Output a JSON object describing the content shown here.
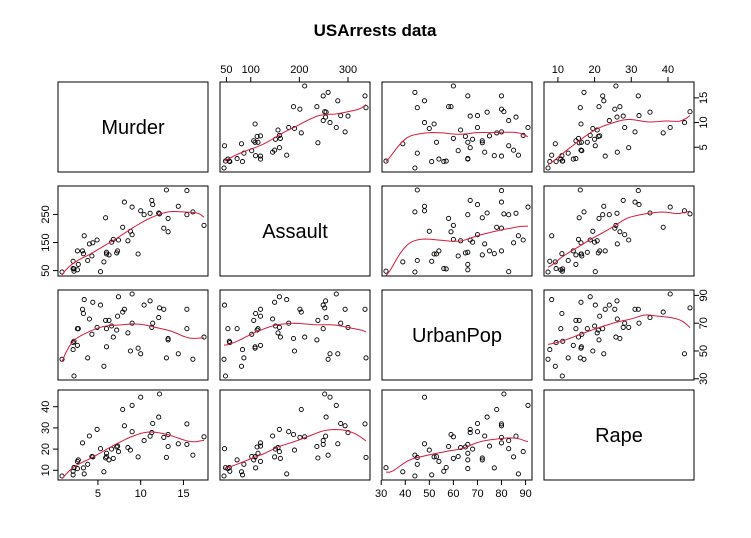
{
  "chart_data": {
    "type": "scatter",
    "title": "USArrests data",
    "variables": [
      "Murder",
      "Assault",
      "UrbanPop",
      "Rape"
    ],
    "ranges": {
      "Murder": [
        0.8,
        17.4
      ],
      "Assault": [
        45,
        337
      ],
      "UrbanPop": [
        32,
        91
      ],
      "Rape": [
        7.3,
        46.0
      ]
    },
    "ticks": {
      "Murder": [
        5,
        10,
        15
      ],
      "Assault": [
        50,
        100,
        200,
        300
      ],
      "UrbanPop": [
        30,
        40,
        50,
        60,
        70,
        80,
        90
      ],
      "Rape": [
        10,
        20,
        30,
        40
      ]
    },
    "tick_labels": {
      "Murder": [
        "5",
        "10",
        "15"
      ],
      "Assault": [
        "50",
        "100",
        "200",
        "300"
      ],
      "UrbanPop": [
        "30",
        "40",
        "50",
        "60",
        "70",
        "80",
        "90"
      ],
      "Rape": [
        "10",
        "20",
        "30",
        "40"
      ]
    },
    "tick_labels_left": {
      "Assault": [
        "50",
        "150",
        "250"
      ],
      "UrbanPop": [
        "30",
        "50",
        "70",
        "90"
      ]
    },
    "left_ticks": {
      "Assault": [
        50,
        150,
        250
      ],
      "UrbanPop": [
        30,
        50,
        70,
        90
      ]
    },
    "grid": false,
    "smoother_color": "#d81b3c",
    "points": [
      [
        13.2,
        236,
        58,
        21.2
      ],
      [
        10.0,
        263,
        48,
        44.5
      ],
      [
        8.1,
        294,
        80,
        31.0
      ],
      [
        8.8,
        190,
        50,
        19.5
      ],
      [
        9.0,
        276,
        91,
        40.6
      ],
      [
        7.9,
        204,
        78,
        38.7
      ],
      [
        3.3,
        110,
        77,
        11.1
      ],
      [
        5.9,
        238,
        72,
        15.8
      ],
      [
        15.4,
        335,
        80,
        31.9
      ],
      [
        17.4,
        211,
        60,
        25.8
      ],
      [
        5.3,
        46,
        83,
        20.2
      ],
      [
        2.6,
        120,
        54,
        14.2
      ],
      [
        10.4,
        249,
        83,
        24.0
      ],
      [
        7.2,
        113,
        65,
        21.0
      ],
      [
        2.2,
        56,
        57,
        11.3
      ],
      [
        6.0,
        115,
        66,
        18.0
      ],
      [
        9.7,
        109,
        52,
        16.3
      ],
      [
        15.4,
        249,
        66,
        22.2
      ],
      [
        2.1,
        83,
        51,
        7.8
      ],
      [
        11.3,
        300,
        67,
        27.8
      ],
      [
        4.4,
        149,
        85,
        16.3
      ],
      [
        12.1,
        255,
        74,
        35.1
      ],
      [
        2.7,
        72,
        66,
        14.9
      ],
      [
        16.1,
        259,
        44,
        17.1
      ],
      [
        9.0,
        178,
        70,
        28.2
      ],
      [
        6.0,
        109,
        53,
        16.4
      ],
      [
        4.3,
        102,
        62,
        16.5
      ],
      [
        12.2,
        252,
        81,
        46.0
      ],
      [
        2.1,
        57,
        56,
        9.5
      ],
      [
        7.4,
        159,
        89,
        18.8
      ],
      [
        11.4,
        285,
        70,
        32.1
      ],
      [
        11.1,
        254,
        86,
        26.1
      ],
      [
        13.0,
        337,
        45,
        16.1
      ],
      [
        0.8,
        45,
        44,
        7.3
      ],
      [
        7.3,
        120,
        75,
        21.4
      ],
      [
        6.6,
        151,
        68,
        20.0
      ],
      [
        4.9,
        159,
        67,
        29.3
      ],
      [
        6.3,
        106,
        72,
        14.9
      ],
      [
        3.4,
        174,
        87,
        8.3
      ],
      [
        14.4,
        279,
        48,
        22.5
      ],
      [
        3.8,
        86,
        45,
        12.8
      ],
      [
        13.2,
        188,
        59,
        26.9
      ],
      [
        12.7,
        201,
        80,
        25.5
      ],
      [
        3.2,
        120,
        80,
        22.9
      ],
      [
        2.2,
        48,
        32,
        11.2
      ],
      [
        8.5,
        156,
        63,
        20.7
      ],
      [
        4.0,
        145,
        73,
        26.2
      ],
      [
        5.7,
        81,
        39,
        9.3
      ],
      [
        2.6,
        53,
        66,
        10.8
      ],
      [
        6.8,
        161,
        60,
        15.6
      ]
    ]
  }
}
